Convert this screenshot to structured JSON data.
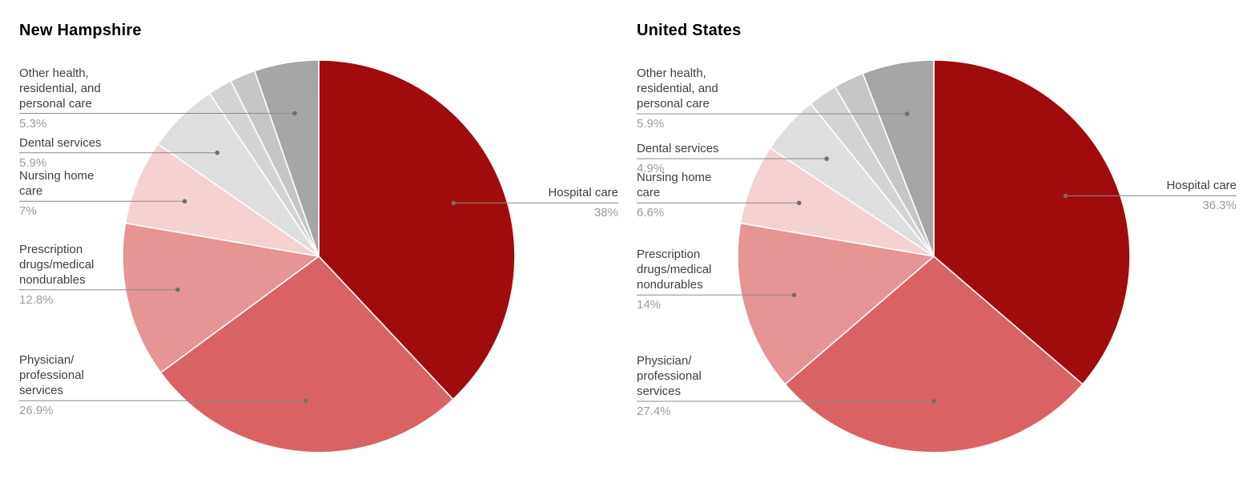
{
  "figure": {
    "background": "#ffffff",
    "label_text_color": "#3f3f3f",
    "pct_text_color": "#9c9c9c",
    "leader_line_color": "#8a8a8a",
    "leader_dot_color": "#6f6f6f",
    "slice_border_color": "#ffffff"
  },
  "chart_data": [
    {
      "type": "pie",
      "title": "New Hampshire",
      "direction": "clockwise",
      "start_angle_deg": 0,
      "legend_position": "callout-labels",
      "segments": [
        {
          "label": "Hospital care",
          "label_lines": [
            "Hospital care"
          ],
          "value": 38,
          "pct_label": "38%",
          "color": "#a00c0c",
          "label_side": "right"
        },
        {
          "label": "Physician/professional services",
          "label_lines": [
            "Physician/",
            "professional",
            "services"
          ],
          "value": 26.9,
          "pct_label": "26.9%",
          "color": "#d96363",
          "label_side": "left"
        },
        {
          "label": "Prescription drugs/medical nondurables",
          "label_lines": [
            "Prescription",
            "drugs/medical",
            "nondurables"
          ],
          "value": 12.8,
          "pct_label": "12.8%",
          "color": "#e69494",
          "label_side": "left"
        },
        {
          "label": "Nursing home care",
          "label_lines": [
            "Nursing home",
            "care"
          ],
          "value": 7,
          "pct_label": "7%",
          "color": "#f5d1d1",
          "label_side": "left"
        },
        {
          "label": "Dental services",
          "label_lines": [
            "Dental services"
          ],
          "value": 5.9,
          "pct_label": "5.9%",
          "color": "#dedede",
          "label_side": "left"
        },
        {
          "label": "",
          "label_lines": [],
          "value": 2.0,
          "pct_label": "",
          "color": "#d3d3d3",
          "label_side": "none"
        },
        {
          "label": "",
          "label_lines": [],
          "value": 2.1,
          "pct_label": "",
          "color": "#c6c6c6",
          "label_side": "none"
        },
        {
          "label": "Other health, residential, and personal care",
          "label_lines": [
            "Other health,",
            "residential, and",
            "personal care"
          ],
          "value": 5.3,
          "pct_label": "5.3%",
          "color": "#a6a6a6",
          "label_side": "left"
        }
      ]
    },
    {
      "type": "pie",
      "title": "United States",
      "direction": "clockwise",
      "start_angle_deg": 0,
      "legend_position": "callout-labels",
      "segments": [
        {
          "label": "Hospital care",
          "label_lines": [
            "Hospital care"
          ],
          "value": 36.3,
          "pct_label": "36.3%",
          "color": "#a00c0c",
          "label_side": "right"
        },
        {
          "label": "Physician/professional services",
          "label_lines": [
            "Physician/",
            "professional",
            "services"
          ],
          "value": 27.4,
          "pct_label": "27.4%",
          "color": "#d96363",
          "label_side": "left"
        },
        {
          "label": "Prescription drugs/medical nondurables",
          "label_lines": [
            "Prescription",
            "drugs/medical",
            "nondurables"
          ],
          "value": 14,
          "pct_label": "14%",
          "color": "#e69494",
          "label_side": "left"
        },
        {
          "label": "Nursing home care",
          "label_lines": [
            "Nursing home",
            "care"
          ],
          "value": 6.6,
          "pct_label": "6.6%",
          "color": "#f5d1d1",
          "label_side": "left"
        },
        {
          "label": "Dental services",
          "label_lines": [
            "Dental services"
          ],
          "value": 4.9,
          "pct_label": "4.9%",
          "color": "#dedede",
          "label_side": "left"
        },
        {
          "label": "",
          "label_lines": [],
          "value": 2.4,
          "pct_label": "",
          "color": "#d3d3d3",
          "label_side": "none"
        },
        {
          "label": "",
          "label_lines": [],
          "value": 2.5,
          "pct_label": "",
          "color": "#c6c6c6",
          "label_side": "none"
        },
        {
          "label": "Other health, residential, and personal care",
          "label_lines": [
            "Other health,",
            "residential, and",
            "personal care"
          ],
          "value": 5.9,
          "pct_label": "5.9%",
          "color": "#a6a6a6",
          "label_side": "left"
        }
      ]
    }
  ]
}
